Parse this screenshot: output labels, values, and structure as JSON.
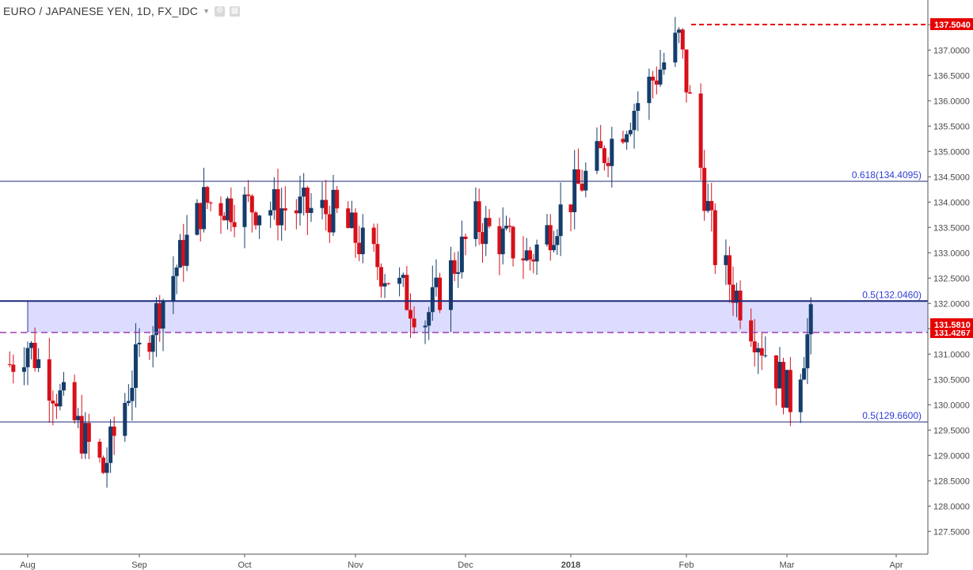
{
  "header": {
    "title": "EURO / JAPANESE YEN, 1D, FX_IDC",
    "dropdown_icon": "chevron-down-icon",
    "settings_icon": "gear-icon",
    "format_icon": "format-icon"
  },
  "colors": {
    "up": "#143d6b",
    "down": "#d6101a",
    "fib_line": "#1f2a7a",
    "fib_text": "#2f3fd6",
    "zone_fill": "#dcdcff",
    "dashed_purple": "#9a3db4",
    "high_line": "#e60000",
    "last_tag": "#e60000"
  },
  "chart_data": {
    "type": "candlestick",
    "title": "EURO / JAPANESE YEN, 1D, FX_IDC",
    "ylim": [
      127.2,
      137.7
    ],
    "y_ticks": [
      "127.5000",
      "128.0000",
      "128.5000",
      "129.0000",
      "129.5000",
      "130.0000",
      "130.5000",
      "131.0000",
      "131.5000",
      "132.0000",
      "132.5000",
      "133.0000",
      "133.5000",
      "134.0000",
      "134.5000",
      "135.0000",
      "135.5000",
      "136.0000",
      "136.5000",
      "137.0000",
      "137.5000"
    ],
    "x_ticks": [
      "Aug",
      "Sep",
      "Oct",
      "Nov",
      "Dec",
      "2018",
      "Feb",
      "Mar",
      "Apr"
    ],
    "grid": false,
    "fib_levels": [
      {
        "label": "0.618(134.4095)",
        "value": 134.4095
      },
      {
        "label": "0.5(132.0460)",
        "value": 132.046
      },
      {
        "label": "0.5(129.6600)",
        "value": 129.66
      }
    ],
    "zone": {
      "top": 132.046,
      "bottom": 131.4267
    },
    "dashed_level": 131.4267,
    "high_level": {
      "value": 137.504,
      "label": "137.5040"
    },
    "price_tags": [
      {
        "label": "131.5810",
        "value": 131.581
      },
      {
        "label": "131.4267",
        "value": 131.4267
      }
    ],
    "key_points": [
      {
        "date": "2017-08-01",
        "close": 131.2
      },
      {
        "date": "2017-08-22",
        "close": 128.7
      },
      {
        "date": "2017-09-01",
        "close": 131.0
      },
      {
        "date": "2017-09-20",
        "close": 134.0
      },
      {
        "date": "2017-10-26",
        "close": 133.8
      },
      {
        "date": "2017-11-20",
        "close": 131.7
      },
      {
        "date": "2017-12-04",
        "close": 133.6
      },
      {
        "date": "2017-12-20",
        "close": 132.9
      },
      {
        "date": "2018-01-10",
        "close": 135.0
      },
      {
        "date": "2018-01-30",
        "close": 137.2
      },
      {
        "date": "2018-02-09",
        "close": 133.0
      },
      {
        "date": "2018-03-02",
        "close": 130.1
      },
      {
        "date": "2018-03-08",
        "close": 131.58
      }
    ]
  }
}
